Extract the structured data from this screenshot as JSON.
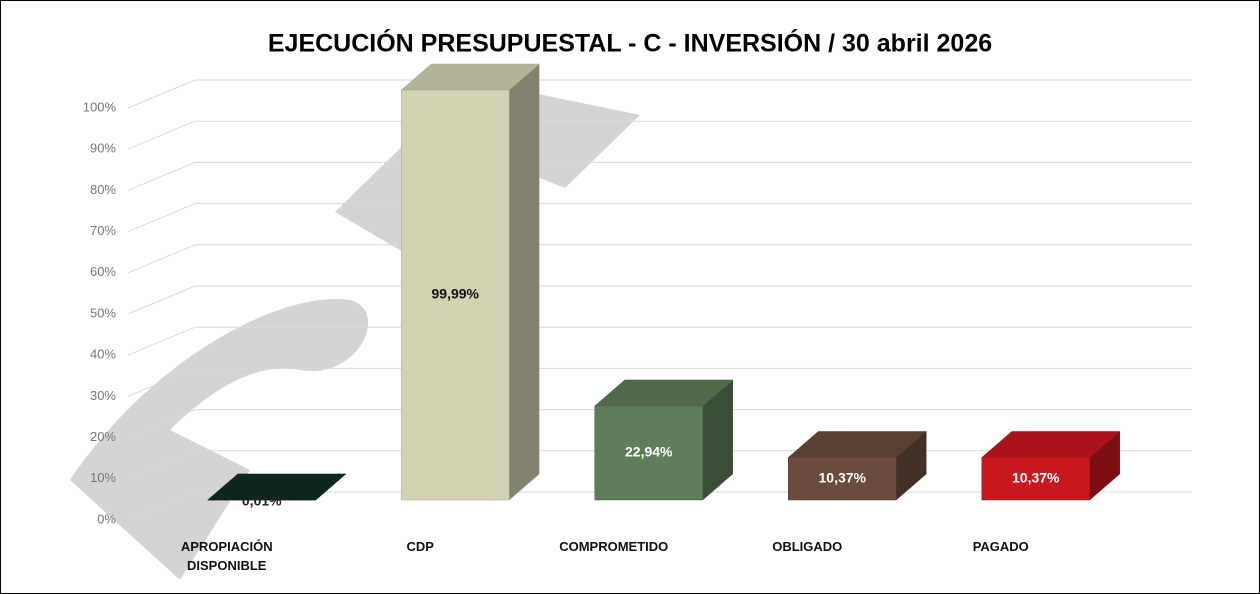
{
  "chart_data": {
    "type": "bar3d",
    "title": "EJECUCIÓN PRESUPUESTAL - C - INVERSIÓN / 30 abril 2026",
    "categories": [
      "APROPIACIÓN DISPONIBLE",
      "CDP",
      "COMPROMETIDO",
      "OBLIGADO",
      "PAGADO"
    ],
    "values": [
      0.01,
      99.99,
      22.94,
      10.37,
      10.37
    ],
    "value_labels": [
      "0,01%",
      "99,99%",
      "22,94%",
      "10,37%",
      "10,37%"
    ],
    "colors": [
      "#0f2e22",
      "#d3d2b3",
      "#5e7d58",
      "#6a4b3c",
      "#c8181e"
    ],
    "label_colors": [
      "#222222",
      "#111111",
      "#ffffff",
      "#ffffff",
      "#ffffff"
    ],
    "ylim": [
      0,
      100
    ],
    "yticks": [
      {
        "value": 0,
        "label": "0%"
      },
      {
        "value": 10,
        "label": "10%"
      },
      {
        "value": 20,
        "label": "20%"
      },
      {
        "value": 30,
        "label": "30%"
      },
      {
        "value": 40,
        "label": "40%"
      },
      {
        "value": 50,
        "label": "50%"
      },
      {
        "value": 60,
        "label": "60%"
      },
      {
        "value": 70,
        "label": "70%"
      },
      {
        "value": 80,
        "label": "80%"
      },
      {
        "value": 90,
        "label": "90%"
      },
      {
        "value": 100,
        "label": "100%"
      }
    ],
    "grid": true
  }
}
